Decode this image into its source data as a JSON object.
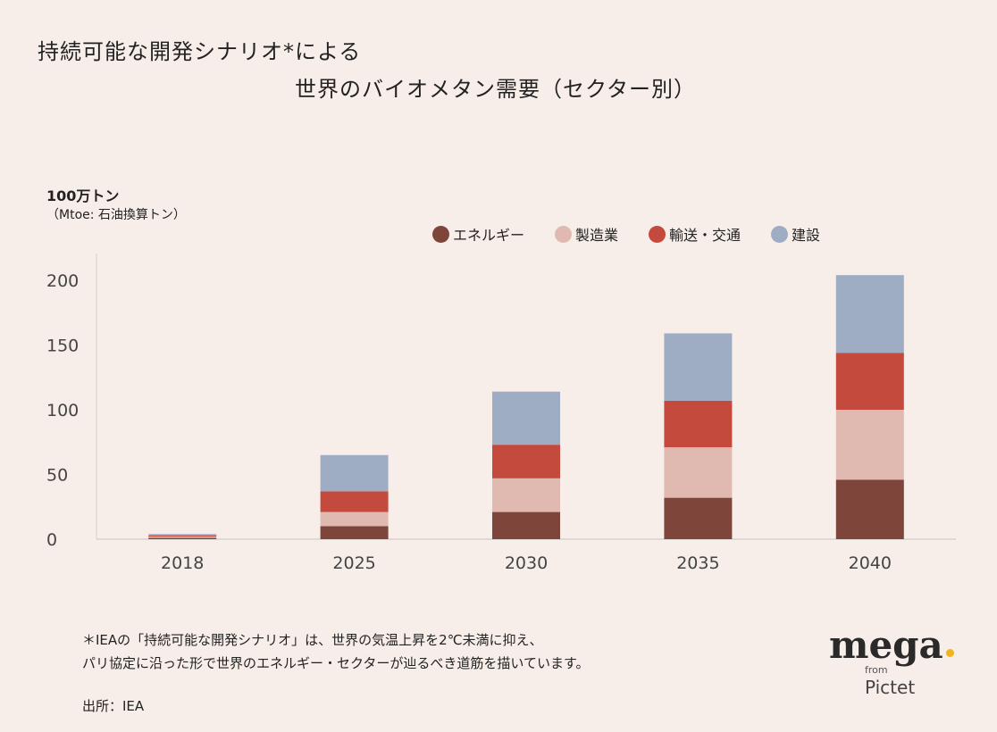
{
  "header": {
    "title_line1": "持続可能な開発シナリオ*による",
    "title_line2": "世界のバイオメタン需要（セクター別）"
  },
  "axis_unit": {
    "line1": "100万トン",
    "line2": "（Mtoe: 石油換算トン）"
  },
  "chart_data": {
    "type": "bar",
    "stacked": true,
    "categories": [
      "2018",
      "2025",
      "2030",
      "2035",
      "2040"
    ],
    "ylim": [
      0,
      220
    ],
    "yticks": [
      0,
      50,
      100,
      150,
      200
    ],
    "series": [
      {
        "name": "エネルギー",
        "color": "#7e463b",
        "values": [
          1,
          10,
          21,
          32,
          46
        ]
      },
      {
        "name": "製造業",
        "color": "#e0bab1",
        "values": [
          1,
          11,
          26,
          39,
          54
        ]
      },
      {
        "name": "輸送・交通",
        "color": "#c54a3e",
        "values": [
          1,
          16,
          26,
          36,
          44
        ]
      },
      {
        "name": "建設",
        "color": "#9fadc4",
        "values": [
          1,
          28,
          41,
          52,
          60
        ]
      }
    ],
    "legend_position": "top-right",
    "grid": false
  },
  "legend": [
    {
      "label": "エネルギー",
      "color": "#7e463b"
    },
    {
      "label": "製造業",
      "color": "#e0bab1"
    },
    {
      "label": "輸送・交通",
      "color": "#c54a3e"
    },
    {
      "label": "建設",
      "color": "#9fadc4"
    }
  ],
  "footnote": {
    "line1": "＊IEAの「持続可能な開発シナリオ」は、世界の気温上昇を2℃未満に抑え、",
    "line2": "パリ協定に沿った形で世界のエネルギー・セクターが辿るべき道筋を描いています。"
  },
  "source": "出所：IEA",
  "logo": {
    "main": "mega",
    "from": "from",
    "brand": "Pictet",
    "dot_color": "#f2b41c"
  }
}
